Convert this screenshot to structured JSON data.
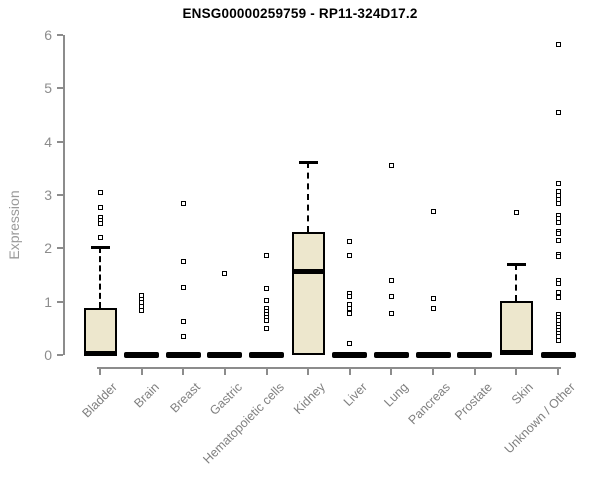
{
  "chart_data": {
    "type": "boxplot",
    "title": "ENSG00000259759 - RP11-324D17.2",
    "ylabel": "Expression",
    "xlabel": "",
    "ylim": [
      0,
      6
    ],
    "yticks": [
      "0",
      "1",
      "2",
      "3",
      "4",
      "5",
      "6"
    ],
    "grid": false,
    "legend": null,
    "categories": [
      "Bladder",
      "Brain",
      "Breast",
      "Gastric",
      "Hematopoietic cells",
      "Kidney",
      "Liver",
      "Lung",
      "Pancreas",
      "Prostate",
      "Skin",
      "Unknown / Other"
    ],
    "boxes": [
      {
        "category": "Bladder",
        "q1": 0,
        "median": 0.02,
        "q3": 0.88,
        "whisker_low": 0,
        "whisker_high": 2.02,
        "outliers": [
          3.05,
          2.77,
          2.58,
          2.52,
          2.46,
          2.21
        ]
      },
      {
        "category": "Brain",
        "q1": 0,
        "median": 0,
        "q3": 0,
        "whisker_low": 0,
        "whisker_high": 0,
        "outliers": [
          1.12,
          1.05,
          0.98,
          0.91,
          0.83
        ]
      },
      {
        "category": "Breast",
        "q1": 0,
        "median": 0,
        "q3": 0,
        "whisker_low": 0,
        "whisker_high": 0,
        "outliers": [
          2.85,
          1.76,
          1.26,
          0.62,
          0.34
        ]
      },
      {
        "category": "Gastric",
        "q1": 0,
        "median": 0,
        "q3": 0,
        "whisker_low": 0,
        "whisker_high": 0,
        "outliers": [
          1.53
        ]
      },
      {
        "category": "Hematopoietic cells",
        "q1": 0,
        "median": 0,
        "q3": 0,
        "whisker_low": 0,
        "whisker_high": 0,
        "outliers": [
          1.87,
          1.25,
          1.03,
          0.88,
          0.82,
          0.76,
          0.7,
          0.64,
          0.5
        ]
      },
      {
        "category": "Kidney",
        "q1": 0,
        "median": 1.56,
        "q3": 2.3,
        "whisker_low": 0,
        "whisker_high": 3.62,
        "outliers": []
      },
      {
        "category": "Liver",
        "q1": 0,
        "median": 0,
        "q3": 0,
        "whisker_low": 0,
        "whisker_high": 0,
        "outliers": [
          2.12,
          1.87,
          1.16,
          1.1,
          0.94,
          0.87,
          0.78,
          0.22
        ]
      },
      {
        "category": "Lung",
        "q1": 0,
        "median": 0,
        "q3": 0,
        "whisker_low": 0,
        "whisker_high": 0,
        "outliers": [
          3.55,
          1.4,
          1.09,
          0.78
        ]
      },
      {
        "category": "Pancreas",
        "q1": 0,
        "median": 0,
        "q3": 0,
        "whisker_low": 0,
        "whisker_high": 0,
        "outliers": [
          2.7,
          1.06,
          0.87
        ]
      },
      {
        "category": "Prostate",
        "q1": 0,
        "median": 0,
        "q3": 0,
        "whisker_low": 0,
        "whisker_high": 0,
        "outliers": []
      },
      {
        "category": "Skin",
        "q1": 0,
        "median": 0.03,
        "q3": 1.02,
        "whisker_low": 0,
        "whisker_high": 1.7,
        "outliers": [
          2.68
        ]
      },
      {
        "category": "Unknown / Other",
        "q1": 0,
        "median": 0,
        "q3": 0,
        "whisker_low": 0,
        "whisker_high": 0,
        "outliers": [
          5.83,
          4.55,
          3.22,
          3.06,
          2.99,
          2.92,
          2.85,
          2.62,
          2.56,
          2.48,
          2.32,
          2.28,
          2.15,
          1.89,
          1.84,
          1.4,
          1.34,
          1.18,
          1.07,
          0.76,
          0.7,
          0.64,
          0.58,
          0.52,
          0.46,
          0.4,
          0.34,
          0.28
        ]
      }
    ],
    "colors": {
      "box_fill": "#ede7cd",
      "box_stroke": "#000000",
      "axis": "#8c8c8c",
      "tick_label": "#8c8c8c",
      "category_label": "#808080",
      "axis_label": "#9a9a9a",
      "title": "#000000",
      "background": "#ffffff"
    }
  }
}
